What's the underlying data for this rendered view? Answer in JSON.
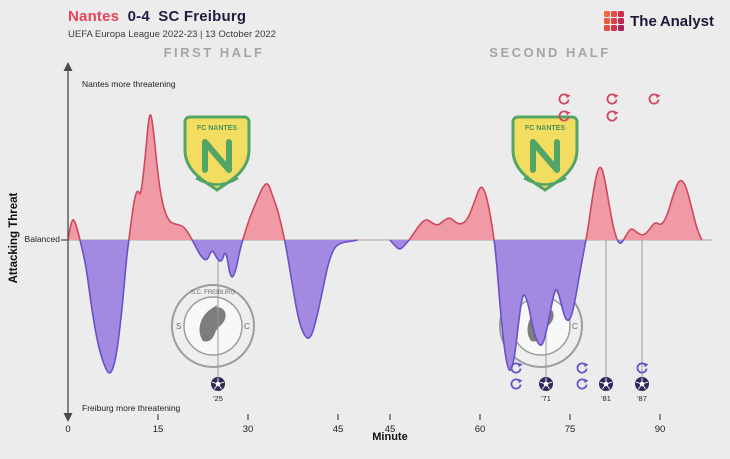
{
  "header": {
    "home": "Nantes",
    "score": "0-4",
    "away": "SC Freiburg",
    "subtitle": "UEFA Europa League 2022-23 | 13 October 2022"
  },
  "brand": {
    "the": "The",
    "analyst": "Analyst",
    "icon_colors": [
      "#f26a3c",
      "#e54a44",
      "#cc2f4e",
      "#ee5a3e",
      "#db3f49",
      "#b92b55",
      "#e64d42",
      "#d0344e",
      "#a42458"
    ]
  },
  "panels": {
    "first": "FIRST HALF",
    "second": "SECOND HALF"
  },
  "axes": {
    "y_label": "Attacking Threat",
    "top_note": "Nantes more threatening",
    "mid_note": "Balanced",
    "bottom_note": "Freiburg more threatening",
    "x_label": "Minute"
  },
  "colors": {
    "title_home": "#e8435a",
    "title_dark": "#231d44",
    "brand_dark": "#1d1a38",
    "panel_title": "#a5a5a5",
    "nantes_fill": "#ef9aa4",
    "nantes_stroke": "#cf4860",
    "freiburg_fill": "#a289e2",
    "freiburg_stroke": "#6852c6",
    "goal_marker": "#2e2957",
    "goal_line": "#9a9a9a",
    "baseline": "#b5b5b5",
    "axis": "#4a4a4a",
    "crest_yellow": "#f5da3e",
    "crest_green": "#2d9447"
  },
  "chart_data": {
    "type": "area",
    "title": "Attacking threat momentum, positive = Nantes, negative = SC Freiburg",
    "ylim": [
      -1,
      1
    ],
    "x_ticks_first_half": [
      0,
      15,
      30,
      45
    ],
    "x_ticks_second_half": [
      45,
      60,
      75,
      90
    ],
    "series": [
      {
        "name": "first_half",
        "points": [
          [
            0,
            0
          ],
          [
            0.6,
            0.16
          ],
          [
            1.3,
            0.12
          ],
          [
            2,
            0
          ],
          [
            3,
            -0.18
          ],
          [
            4,
            -0.5
          ],
          [
            5,
            -0.74
          ],
          [
            6,
            -0.88
          ],
          [
            7,
            -0.96
          ],
          [
            8,
            -0.84
          ],
          [
            9,
            -0.5
          ],
          [
            9.7,
            -0.15
          ],
          [
            10.2,
            0.02
          ],
          [
            11,
            0.28
          ],
          [
            11.6,
            0.36
          ],
          [
            12.1,
            0.3
          ],
          [
            12.8,
            0.55
          ],
          [
            13.6,
            0.93
          ],
          [
            14.2,
            0.8
          ],
          [
            15,
            0.45
          ],
          [
            15.8,
            0.24
          ],
          [
            16.8,
            0.13
          ],
          [
            18,
            0.11
          ],
          [
            19.2,
            0.1
          ],
          [
            20.2,
            0.04
          ],
          [
            21.2,
            -0.04
          ],
          [
            22.2,
            -0.12
          ],
          [
            23.2,
            -0.15
          ],
          [
            24,
            -0.06
          ],
          [
            24.8,
            -0.13
          ],
          [
            25.6,
            -0.16
          ],
          [
            26.3,
            -0.06
          ],
          [
            27.1,
            -0.28
          ],
          [
            27.9,
            -0.23
          ],
          [
            28.7,
            -0.06
          ],
          [
            29.4,
            0.04
          ],
          [
            30.4,
            0.17
          ],
          [
            31.4,
            0.27
          ],
          [
            32.4,
            0.37
          ],
          [
            33.3,
            0.41
          ],
          [
            34.1,
            0.31
          ],
          [
            34.9,
            0.22
          ],
          [
            35.7,
            0.08
          ],
          [
            36.4,
            -0.06
          ],
          [
            37.4,
            -0.32
          ],
          [
            38.4,
            -0.56
          ],
          [
            39.4,
            -0.68
          ],
          [
            40.4,
            -0.7
          ],
          [
            41.4,
            -0.56
          ],
          [
            42.4,
            -0.36
          ],
          [
            43.4,
            -0.16
          ],
          [
            44.4,
            -0.05
          ],
          [
            45.5,
            -0.02
          ],
          [
            47,
            -0.01
          ],
          [
            48.3,
            0
          ]
        ]
      },
      {
        "name": "second_half",
        "points": [
          [
            45,
            0
          ],
          [
            45.8,
            -0.04
          ],
          [
            46.6,
            -0.07
          ],
          [
            47.4,
            -0.04
          ],
          [
            48.2,
            0
          ],
          [
            49,
            0.05
          ],
          [
            50,
            0.11
          ],
          [
            51,
            0.15
          ],
          [
            52,
            0.12
          ],
          [
            53,
            0.1
          ],
          [
            54,
            0.14
          ],
          [
            55,
            0.16
          ],
          [
            56,
            0.12
          ],
          [
            57,
            0.11
          ],
          [
            58,
            0.15
          ],
          [
            59,
            0.26
          ],
          [
            60,
            0.38
          ],
          [
            60.7,
            0.36
          ],
          [
            61.4,
            0.25
          ],
          [
            62.1,
            0.08
          ],
          [
            62.7,
            -0.12
          ],
          [
            63.4,
            -0.5
          ],
          [
            64.2,
            -0.82
          ],
          [
            65,
            -0.95
          ],
          [
            65.8,
            -0.82
          ],
          [
            66.5,
            -0.55
          ],
          [
            67.2,
            -0.36
          ],
          [
            68,
            -0.44
          ],
          [
            68.8,
            -0.62
          ],
          [
            69.6,
            -0.73
          ],
          [
            70.4,
            -0.75
          ],
          [
            71.2,
            -0.62
          ],
          [
            72,
            -0.44
          ],
          [
            72.7,
            -0.32
          ],
          [
            73.5,
            -0.44
          ],
          [
            74.2,
            -0.56
          ],
          [
            75,
            -0.57
          ],
          [
            75.8,
            -0.44
          ],
          [
            76.6,
            -0.24
          ],
          [
            77.3,
            -0.08
          ],
          [
            78,
            0.08
          ],
          [
            78.8,
            0.32
          ],
          [
            79.6,
            0.5
          ],
          [
            80.3,
            0.52
          ],
          [
            81,
            0.38
          ],
          [
            81.8,
            0.18
          ],
          [
            82.5,
            0.04
          ],
          [
            83.3,
            -0.04
          ],
          [
            84.2,
            0.02
          ],
          [
            85.2,
            0.09
          ],
          [
            86.2,
            0.05
          ],
          [
            87.2,
            0.03
          ],
          [
            88.2,
            0.07
          ],
          [
            89.2,
            0.13
          ],
          [
            90.2,
            0.1
          ],
          [
            91.2,
            0.17
          ],
          [
            92.2,
            0.32
          ],
          [
            93.2,
            0.43
          ],
          [
            94.2,
            0.4
          ],
          [
            95.2,
            0.24
          ],
          [
            96.2,
            0.07
          ],
          [
            97,
            0
          ]
        ]
      }
    ],
    "goals": [
      {
        "team": "SC Freiburg",
        "half": 1,
        "minute": 25,
        "label": "'25"
      },
      {
        "team": "SC Freiburg",
        "half": 2,
        "minute": 71,
        "label": "'71"
      },
      {
        "team": "SC Freiburg",
        "half": 2,
        "minute": 81,
        "label": "'81"
      },
      {
        "team": "SC Freiburg",
        "half": 2,
        "minute": 87,
        "label": "'87"
      }
    ],
    "substitutions": [
      {
        "team": "Nantes",
        "minute": 74
      },
      {
        "team": "Nantes",
        "minute": 74
      },
      {
        "team": "Nantes",
        "minute": 82
      },
      {
        "team": "Nantes",
        "minute": 82
      },
      {
        "team": "Nantes",
        "minute": 89
      },
      {
        "team": "SC Freiburg",
        "minute": 66
      },
      {
        "team": "SC Freiburg",
        "minute": 66
      },
      {
        "team": "SC Freiburg",
        "minute": 77
      },
      {
        "team": "SC Freiburg",
        "minute": 77
      },
      {
        "team": "SC Freiburg",
        "minute": 87
      }
    ]
  }
}
